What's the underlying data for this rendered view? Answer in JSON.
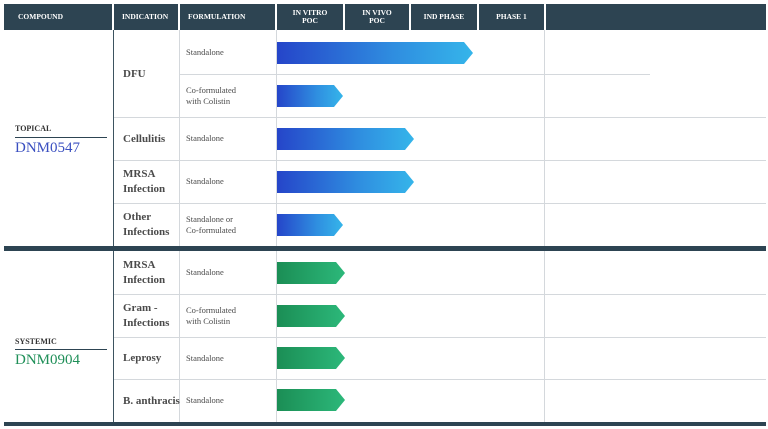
{
  "header": {
    "compound": "COMPOUND",
    "indication": "INDICATION",
    "formulation": "FORMULATION",
    "in_vitro": "IN VITRO\nPOC",
    "in_vivo": "IN VIVO\nPOC",
    "ind_phase": "IND PHASE",
    "phase1": "PHASE 1"
  },
  "topical": {
    "label": "TOPICAL",
    "compound": "DNM0547",
    "color": "#3a4fc0",
    "rows": [
      {
        "indication": "DFU",
        "formulation": "Standalone",
        "progress": "IND PHASE"
      },
      {
        "indication": "",
        "formulation": "Co-formulated\nwith Colistin",
        "progress": "IN VITRO POC"
      },
      {
        "indication": "Cellulitis",
        "formulation": "Standalone",
        "progress": "IN VIVO POC"
      },
      {
        "indication": "MRSA\nInfection",
        "formulation": "Standalone",
        "progress": "IN VIVO POC"
      },
      {
        "indication": "Other\nInfections",
        "formulation": "Standalone or\nCo-formulated",
        "progress": "IN VITRO POC"
      }
    ]
  },
  "systemic": {
    "label": "SYSTEMIC",
    "compound": "DNM0904",
    "color": "#1f8f58",
    "rows": [
      {
        "indication": "MRSA\nInfection",
        "formulation": "Standalone",
        "progress": "IN VITRO POC"
      },
      {
        "indication": "Gram -\nInfections",
        "formulation": "Co-formulated\nwith Colistin",
        "progress": "IN VITRO POC"
      },
      {
        "indication": "Leprosy",
        "formulation": "Standalone",
        "progress": "IN VITRO POC"
      },
      {
        "indication": "B. anthracis",
        "formulation": "Standalone",
        "progress": "IN VITRO POC"
      }
    ]
  }
}
